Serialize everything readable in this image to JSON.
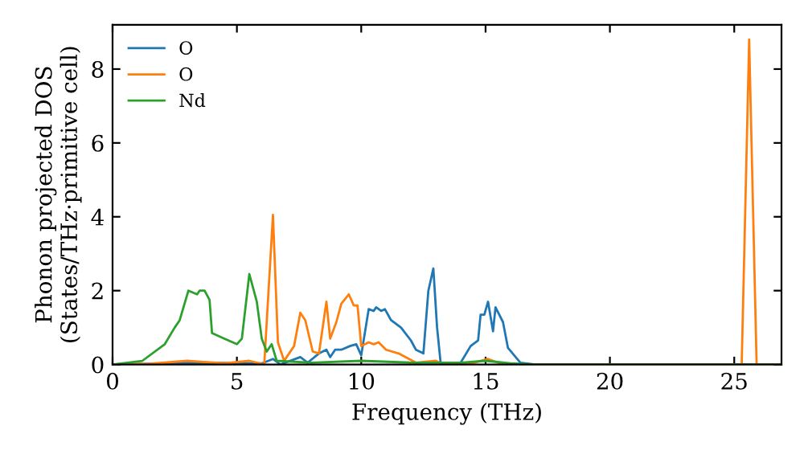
{
  "chart_data": {
    "type": "line",
    "xlabel": "Frequency (THz)",
    "ylabel": "Phonon projected DOS\n(States/THz·primitive cell)",
    "xlim": [
      0,
      26.9
    ],
    "ylim": [
      0,
      9.2
    ],
    "xticks": [
      0,
      5,
      10,
      15,
      20,
      25
    ],
    "yticks": [
      0,
      2,
      4,
      6,
      8
    ],
    "legend": "top left",
    "grid": false,
    "line_style": "solid",
    "marker": "none",
    "series": [
      {
        "name": "O",
        "color": "#1f77b4",
        "x": [
          0,
          1.5,
          3,
          6,
          6.45,
          6.75,
          7.55,
          7.85,
          8.3,
          8.6,
          8.75,
          8.95,
          9.2,
          9.55,
          9.8,
          10.0,
          10.3,
          10.5,
          10.6,
          10.8,
          10.95,
          11.2,
          11.6,
          12.0,
          12.2,
          12.5,
          12.7,
          12.9,
          13.05,
          13.2,
          14.0,
          14.4,
          14.7,
          14.8,
          14.95,
          15.1,
          15.3,
          15.4,
          15.7,
          15.9,
          16.4,
          17,
          26.9
        ],
        "values": [
          0,
          0.02,
          0.05,
          0.03,
          0.15,
          0,
          0.2,
          0.05,
          0.3,
          0.4,
          0.2,
          0.4,
          0.4,
          0.5,
          0.55,
          0.25,
          1.5,
          1.45,
          1.55,
          1.45,
          1.5,
          1.2,
          1.0,
          0.65,
          0.4,
          0.3,
          2.0,
          2.6,
          1.0,
          0,
          0.05,
          0.5,
          0.65,
          1.35,
          1.35,
          1.7,
          0.9,
          1.55,
          1.15,
          0.45,
          0.05,
          0,
          0
        ]
      },
      {
        "name": "O",
        "color": "#ff7f0e",
        "x": [
          0,
          1.5,
          3,
          4.5,
          5.5,
          6.1,
          6.45,
          6.65,
          6.9,
          7.3,
          7.55,
          7.75,
          8.05,
          8.3,
          8.6,
          8.75,
          9.0,
          9.2,
          9.5,
          9.7,
          9.85,
          10.0,
          10.3,
          10.5,
          10.7,
          11.0,
          11.5,
          12.2,
          13.0,
          13.3,
          14.4,
          15.1,
          15.5,
          16,
          25.3,
          25.6,
          25.9,
          26.9
        ],
        "values": [
          0,
          0.02,
          0.1,
          0.03,
          0.1,
          0,
          4.05,
          0.6,
          0.1,
          0.5,
          1.4,
          1.2,
          0.35,
          0.3,
          1.7,
          0.7,
          1.15,
          1.65,
          1.9,
          1.6,
          1.6,
          0.5,
          0.6,
          0.55,
          0.6,
          0.4,
          0.3,
          0.05,
          0.1,
          0,
          0.02,
          0.15,
          0.05,
          0,
          0,
          8.8,
          0,
          0
        ]
      },
      {
        "name": "Nd",
        "color": "#2ca02c",
        "x": [
          0,
          1.2,
          2.1,
          2.5,
          2.7,
          3.05,
          3.4,
          3.5,
          3.7,
          3.9,
          4.0,
          4.5,
          5.0,
          5.2,
          5.5,
          5.8,
          6.0,
          6.2,
          6.4,
          6.6,
          8,
          10,
          12,
          14,
          15,
          16,
          17,
          26.9
        ],
        "values": [
          0,
          0.1,
          0.55,
          1.0,
          1.2,
          2.0,
          1.9,
          2.0,
          2.0,
          1.75,
          0.85,
          0.7,
          0.55,
          0.7,
          2.45,
          1.7,
          0.7,
          0.35,
          0.55,
          0.1,
          0.05,
          0.1,
          0.05,
          0.05,
          0.1,
          0.03,
          0,
          0
        ]
      }
    ]
  }
}
